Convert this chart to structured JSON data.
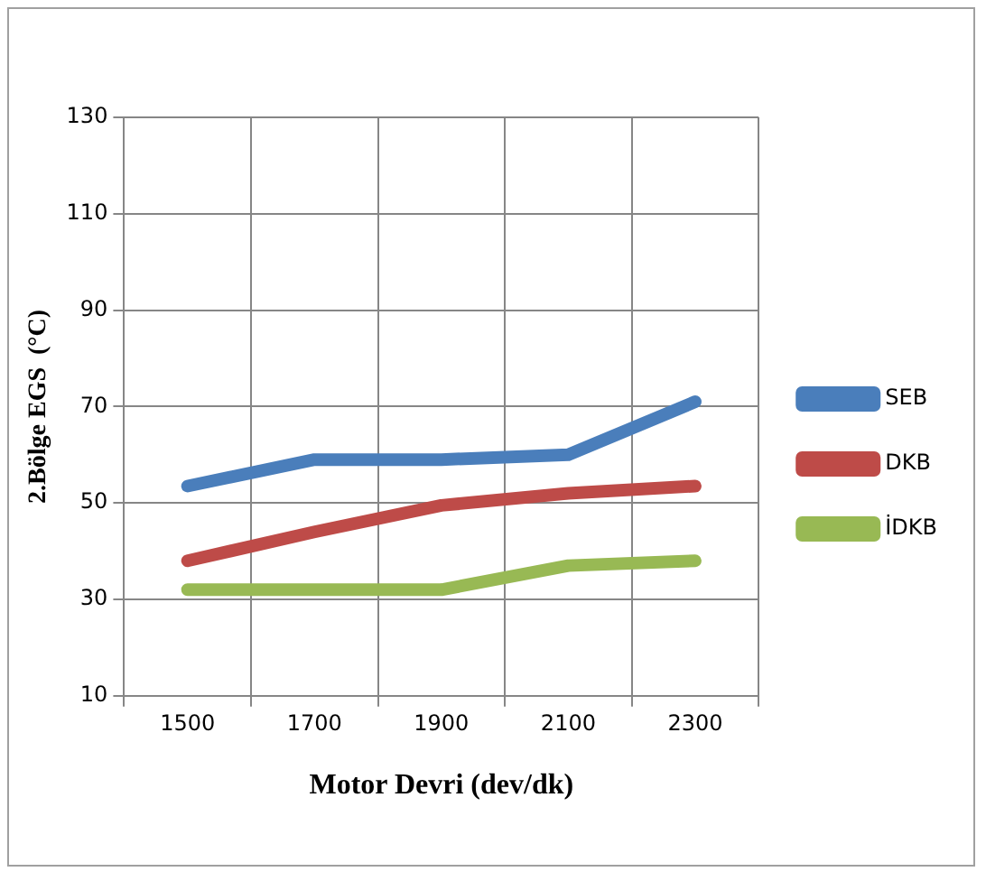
{
  "chart_data": {
    "type": "line",
    "xlabel": "Motor Devri (dev/dk)",
    "ylabel": "2.Bölge EGS  (°C)",
    "categories": [
      "1500",
      "1700",
      "1900",
      "2100",
      "2300"
    ],
    "series": [
      {
        "name": "SEB",
        "color": "#4a7ebb",
        "values": [
          53.5,
          59,
          59,
          60,
          71
        ]
      },
      {
        "name": "DKB",
        "color": "#be4b48",
        "values": [
          38,
          44,
          49.5,
          52,
          53.5
        ]
      },
      {
        "name": "İDKB",
        "color": "#98b954",
        "values": [
          32,
          32,
          32,
          37,
          38
        ]
      }
    ],
    "ylim": [
      10,
      130
    ],
    "yticks": [
      10,
      30,
      50,
      70,
      90,
      110,
      130
    ],
    "grid": true,
    "legend": "right",
    "marker": "none",
    "line_style": "solid"
  }
}
